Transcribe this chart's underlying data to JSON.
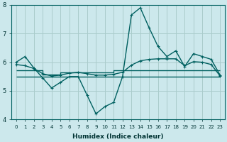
{
  "bg_color": "#cce8ec",
  "grid_color": "#aacccc",
  "line_color": "#006060",
  "xlabel": "Humidex (Indice chaleur)",
  "xlim_min": -0.5,
  "xlim_max": 23.5,
  "ylim": [
    4,
    8
  ],
  "yticks": [
    4,
    5,
    6,
    7,
    8
  ],
  "xticks": [
    0,
    1,
    2,
    3,
    4,
    5,
    6,
    7,
    8,
    9,
    10,
    11,
    12,
    13,
    14,
    15,
    16,
    17,
    18,
    19,
    20,
    21,
    22,
    23
  ],
  "series1_x": [
    0,
    1,
    2,
    3,
    4,
    5,
    6,
    7,
    8,
    9,
    10,
    11,
    12,
    13,
    14,
    15,
    16,
    17,
    18,
    19,
    20,
    21,
    22,
    23
  ],
  "series1_y": [
    6.0,
    6.2,
    5.8,
    5.45,
    5.1,
    5.3,
    5.5,
    5.5,
    4.85,
    4.2,
    4.45,
    4.6,
    5.5,
    7.65,
    7.9,
    7.2,
    6.55,
    6.2,
    6.4,
    5.85,
    6.3,
    6.2,
    6.1,
    5.55
  ],
  "series2_x": [
    0,
    1,
    2,
    3,
    4,
    5,
    6,
    7,
    8,
    9,
    10,
    11,
    12,
    13,
    14,
    15,
    16,
    17,
    18,
    19,
    20,
    21,
    22,
    23
  ],
  "series2_y": [
    5.92,
    5.88,
    5.78,
    5.6,
    5.52,
    5.55,
    5.62,
    5.65,
    5.6,
    5.55,
    5.55,
    5.58,
    5.65,
    5.9,
    6.05,
    6.1,
    6.12,
    6.12,
    6.12,
    5.88,
    6.02,
    6.0,
    5.92,
    5.52
  ],
  "series3_x": [
    0,
    11,
    11,
    22,
    22,
    23
  ],
  "series3_y": [
    5.5,
    5.5,
    5.5,
    5.5,
    5.5,
    5.5
  ],
  "series4_x": [
    0,
    3,
    3,
    5,
    5,
    11,
    11,
    23
  ],
  "series4_y": [
    5.72,
    5.72,
    5.58,
    5.58,
    5.65,
    5.65,
    5.72,
    5.72
  ]
}
